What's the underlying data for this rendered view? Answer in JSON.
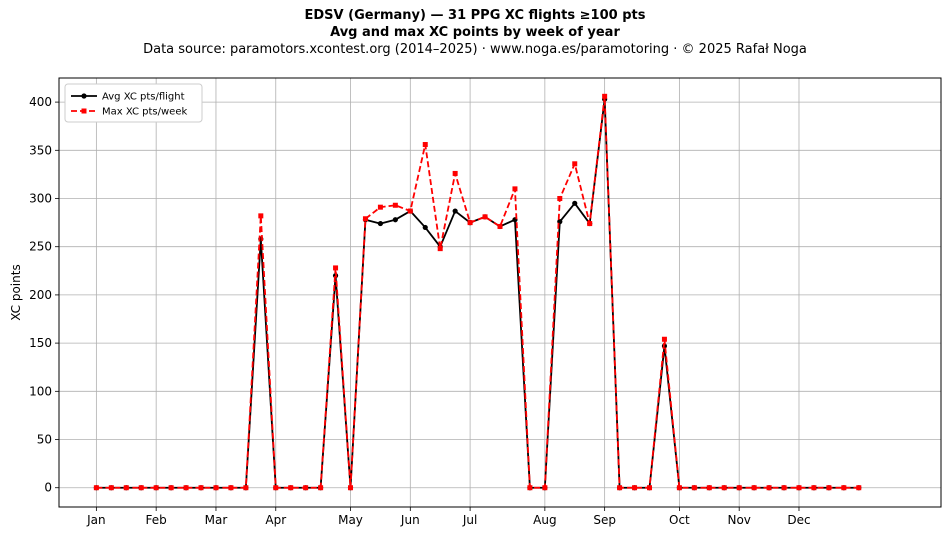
{
  "chart_data": {
    "type": "line",
    "title": "EDSV (Germany)  —  31 PPG XC flights ≥100 pts",
    "subtitle": "Avg and max XC points by week of year",
    "source": "Data source: paramotors.xcontest.org (2014–2025)  ·  www.noga.es/paramotoring  ·  © 2025 Rafał Noga",
    "xlabel": "",
    "ylabel": "XC points",
    "xlim": [
      -2.5,
      56.5
    ],
    "ylim": [
      -20,
      425
    ],
    "grid": true,
    "legend_position": "top-left",
    "x_ticks": [
      {
        "label": "Jan",
        "value": 0
      },
      {
        "label": "Feb",
        "value": 4
      },
      {
        "label": "Mar",
        "value": 8
      },
      {
        "label": "Apr",
        "value": 12
      },
      {
        "label": "May",
        "value": 17
      },
      {
        "label": "Jun",
        "value": 21
      },
      {
        "label": "Jul",
        "value": 25
      },
      {
        "label": "Aug",
        "value": 30
      },
      {
        "label": "Sep",
        "value": 34
      },
      {
        "label": "Oct",
        "value": 39
      },
      {
        "label": "Nov",
        "value": 43
      },
      {
        "label": "Dec",
        "value": 47
      }
    ],
    "y_ticks": [
      0,
      50,
      100,
      150,
      200,
      250,
      300,
      350,
      400
    ],
    "x": [
      0,
      1,
      2,
      3,
      4,
      5,
      6,
      7,
      8,
      9,
      10,
      11,
      12,
      13,
      14,
      15,
      16,
      17,
      18,
      19,
      20,
      21,
      22,
      23,
      24,
      25,
      26,
      27,
      28,
      29,
      30,
      31,
      32,
      33,
      34,
      35,
      36,
      37,
      38,
      39,
      40,
      41,
      42,
      43,
      44,
      45,
      46,
      47,
      48,
      49,
      50,
      51
    ],
    "series": [
      {
        "name": "Avg XC pts/flight",
        "color": "#000000",
        "style": "solid",
        "marker": "circle",
        "values": [
          0,
          0,
          0,
          0,
          0,
          0,
          0,
          0,
          0,
          0,
          0,
          258,
          0,
          0,
          0,
          0,
          220,
          0,
          278,
          274,
          278,
          287,
          270,
          250,
          287,
          275,
          281,
          271,
          278,
          0,
          0,
          276,
          295,
          274,
          403,
          0,
          0,
          0,
          147,
          0,
          0,
          0,
          0,
          0,
          0,
          0,
          0,
          0,
          0,
          0,
          0,
          0
        ]
      },
      {
        "name": "Max XC pts/week",
        "color": "#ff0000",
        "style": "dashed",
        "marker": "square",
        "values": [
          0,
          0,
          0,
          0,
          0,
          0,
          0,
          0,
          0,
          0,
          0,
          282,
          0,
          0,
          0,
          0,
          228,
          0,
          279,
          291,
          293,
          287,
          356,
          248,
          326,
          275,
          281,
          271,
          310,
          0,
          0,
          300,
          336,
          274,
          406,
          0,
          0,
          0,
          154,
          0,
          0,
          0,
          0,
          0,
          0,
          0,
          0,
          0,
          0,
          0,
          0,
          0
        ]
      }
    ]
  }
}
